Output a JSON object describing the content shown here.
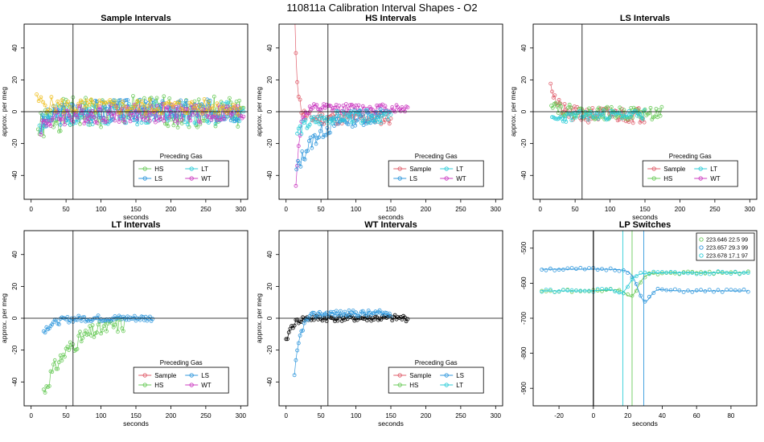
{
  "figure_title": "110811a   Calibration Interval Shapes - O2",
  "colors": {
    "Sample": "#E0606E",
    "HS": "#6CCB5C",
    "LS": "#3399DD",
    "LT": "#2FCDD8",
    "WT": "#CC3FC2",
    "black": "#000000",
    "gold": "#F0C020"
  },
  "chart_data": [
    {
      "type": "scatter",
      "title": "Sample Intervals",
      "xlabel": "seconds",
      "ylabel": "approx. per meg",
      "xlim": [
        -10,
        310
      ],
      "ylim": [
        -55,
        55
      ],
      "xticks": [
        0,
        50,
        100,
        150,
        200,
        250,
        300
      ],
      "yticks": [
        -40,
        -20,
        0,
        20,
        40
      ],
      "vline": 60,
      "hline": 0,
      "legend": {
        "title": "Preceding Gas",
        "position": "bottom-center",
        "entries": [
          {
            "name": "HS",
            "color": "#6CCB5C"
          },
          {
            "name": "LT",
            "color": "#2FCDD8"
          },
          {
            "name": "LS",
            "color": "#3399DD"
          },
          {
            "name": "WT",
            "color": "#CC3FC2"
          }
        ]
      },
      "series": [
        {
          "name": "HS",
          "color": "#6CCB5C",
          "start": 10,
          "end": 305,
          "a": -12,
          "b": 0,
          "tau": 20,
          "noise": 10,
          "step": 2,
          "seed": 1
        },
        {
          "name": "LT",
          "color": "#2FCDD8",
          "start": 12,
          "end": 305,
          "a": -6,
          "b": -1,
          "tau": 20,
          "noise": 7,
          "step": 2,
          "seed": 2
        },
        {
          "name": "LS",
          "color": "#3399DD",
          "start": 14,
          "end": 300,
          "a": -10,
          "b": 1,
          "tau": 20,
          "noise": 7,
          "step": 2,
          "seed": 3
        },
        {
          "name": "WT",
          "color": "#CC3FC2",
          "start": 14,
          "end": 305,
          "a": -8,
          "b": -1,
          "tau": 20,
          "noise": 6,
          "step": 2,
          "seed": 4
        },
        {
          "name": "Other",
          "color": "#F0C020",
          "start": 8,
          "end": 300,
          "a": 4,
          "b": 3,
          "tau": 20,
          "noise": 5,
          "step": 3,
          "seed": 5
        }
      ]
    },
    {
      "type": "scatter",
      "title": "HS Intervals",
      "xlabel": "seconds",
      "ylabel": "approx. per meg",
      "xlim": [
        -10,
        310
      ],
      "ylim": [
        -55,
        55
      ],
      "xticks": [
        0,
        50,
        100,
        150,
        200,
        250,
        300
      ],
      "yticks": [
        -40,
        -20,
        0,
        20,
        40
      ],
      "vline": 60,
      "hline": 0,
      "legend": {
        "title": "Preceding Gas",
        "position": "bottom-center",
        "entries": [
          {
            "name": "Sample",
            "color": "#E0606E"
          },
          {
            "name": "LT",
            "color": "#2FCDD8"
          },
          {
            "name": "LS",
            "color": "#3399DD"
          },
          {
            "name": "WT",
            "color": "#CC3FC2"
          }
        ]
      },
      "series": [
        {
          "name": "Sample",
          "color": "#E0606E",
          "start": 12,
          "end": 150,
          "a": 70,
          "b": -4,
          "tau": 4,
          "noise": 4,
          "step": 2,
          "seed": 11
        },
        {
          "name": "WT",
          "color": "#CC3FC2",
          "start": 14,
          "end": 175,
          "a": -50,
          "b": 2,
          "tau": 5,
          "noise": 3,
          "step": 2,
          "seed": 12
        },
        {
          "name": "LS",
          "color": "#3399DD",
          "start": 15,
          "end": 140,
          "a": -35,
          "b": -2,
          "tau": 30,
          "noise": 5,
          "step": 2,
          "seed": 13
        },
        {
          "name": "LT",
          "color": "#2FCDD8",
          "start": 16,
          "end": 150,
          "a": -10,
          "b": -3,
          "tau": 20,
          "noise": 4,
          "step": 2,
          "seed": 14
        }
      ]
    },
    {
      "type": "scatter",
      "title": "LS Intervals",
      "xlabel": "seconds",
      "ylabel": "approx. per meg",
      "xlim": [
        -10,
        310
      ],
      "ylim": [
        -55,
        55
      ],
      "xticks": [
        0,
        50,
        100,
        150,
        200,
        250,
        300
      ],
      "yticks": [
        -40,
        -20,
        0,
        20,
        40
      ],
      "vline": 60,
      "hline": 0,
      "legend": {
        "title": "Preceding Gas",
        "position": "bottom-center",
        "entries": [
          {
            "name": "Sample",
            "color": "#E0606E"
          },
          {
            "name": "LT",
            "color": "#2FCDD8"
          },
          {
            "name": "HS",
            "color": "#6CCB5C"
          },
          {
            "name": "WT",
            "color": "#CC3FC2"
          }
        ]
      },
      "series": [
        {
          "name": "Sample",
          "color": "#E0606E",
          "start": 15,
          "end": 150,
          "a": 22,
          "b": -2,
          "tau": 8,
          "noise": 5,
          "step": 2,
          "seed": 21
        },
        {
          "name": "HS",
          "color": "#6CCB5C",
          "start": 16,
          "end": 175,
          "a": 8,
          "b": -1,
          "tau": 15,
          "noise": 4,
          "step": 2,
          "seed": 22
        },
        {
          "name": "LT",
          "color": "#2FCDD8",
          "start": 17,
          "end": 150,
          "a": -4,
          "b": -2,
          "tau": 20,
          "noise": 3,
          "step": 2,
          "seed": 23
        }
      ]
    },
    {
      "type": "scatter",
      "title": "LT Intervals",
      "xlabel": "seconds",
      "ylabel": "approx. per meg",
      "xlim": [
        -10,
        310
      ],
      "ylim": [
        -55,
        55
      ],
      "xticks": [
        0,
        50,
        100,
        150,
        200,
        250,
        300
      ],
      "yticks": [
        -40,
        -20,
        0,
        20,
        40
      ],
      "vline": 60,
      "hline": 0,
      "legend": {
        "title": "Preceding Gas",
        "position": "bottom-center",
        "entries": [
          {
            "name": "Sample",
            "color": "#E0606E"
          },
          {
            "name": "LS",
            "color": "#3399DD"
          },
          {
            "name": "HS",
            "color": "#6CCB5C"
          },
          {
            "name": "WT",
            "color": "#CC3FC2"
          }
        ]
      },
      "series": [
        {
          "name": "HS",
          "color": "#6CCB5C",
          "start": 18,
          "end": 135,
          "a": -45,
          "b": -1,
          "tau": 40,
          "noise": 5,
          "step": 2,
          "seed": 31
        },
        {
          "name": "LS",
          "color": "#3399DD",
          "start": 18,
          "end": 175,
          "a": -8,
          "b": 0,
          "tau": 15,
          "noise": 2,
          "step": 2,
          "seed": 32
        }
      ]
    },
    {
      "type": "scatter",
      "title": "WT Intervals",
      "xlabel": "seconds",
      "ylabel": "approx. per meg",
      "xlim": [
        -10,
        310
      ],
      "ylim": [
        -55,
        55
      ],
      "xticks": [
        0,
        50,
        100,
        150,
        200,
        250,
        300
      ],
      "yticks": [
        -40,
        -20,
        0,
        20,
        40
      ],
      "vline": 60,
      "hline": 0,
      "legend": {
        "title": "Preceding Gas",
        "position": "bottom-center",
        "entries": [
          {
            "name": "Sample",
            "color": "#E0606E"
          },
          {
            "name": "LS",
            "color": "#3399DD"
          },
          {
            "name": "HS",
            "color": "#6CCB5C"
          },
          {
            "name": "LT",
            "color": "#2FCDD8"
          }
        ]
      },
      "series": [
        {
          "name": "Other",
          "color": "#000000",
          "start": 0,
          "end": 175,
          "a": -15,
          "b": 0,
          "tau": 8,
          "noise": 2,
          "step": 2,
          "seed": 41
        },
        {
          "name": "LS",
          "color": "#3399DD",
          "start": 12,
          "end": 150,
          "a": -40,
          "b": 3,
          "tau": 8,
          "noise": 2,
          "step": 2,
          "seed": 42
        }
      ]
    },
    {
      "type": "line",
      "title": "LP Switches",
      "xlabel": "seconds",
      "ylabel": "",
      "xlim": [
        -35,
        95
      ],
      "ylim": [
        -950,
        -450
      ],
      "xticks": [
        -20,
        0,
        20,
        40,
        60,
        80
      ],
      "yticks": [
        -900,
        -800,
        -700,
        -600,
        -500
      ],
      "vlines_black": [
        0
      ],
      "legend": {
        "position": "top-right",
        "entries": [
          {
            "label": "223.646 22.5 99",
            "color": "#6CCB5C"
          },
          {
            "label": "223.657 29.3 99",
            "color": "#3399DD"
          },
          {
            "label": "223.678 17.1 97",
            "color": "#2FCDD8"
          }
        ]
      },
      "switches": [
        {
          "color": "#6CCB5C",
          "switch_x": 22.5,
          "before": -622,
          "after": -570,
          "dip": -40
        },
        {
          "color": "#3399DD",
          "switch_x": 29.3,
          "before": -560,
          "after": -622,
          "dip": -60
        },
        {
          "color": "#2FCDD8",
          "switch_x": 17.1,
          "before": -622,
          "after": -570,
          "dip": -30
        }
      ]
    }
  ]
}
